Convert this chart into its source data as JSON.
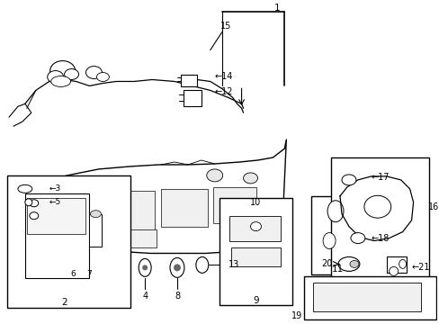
{
  "bg": "#ffffff",
  "lc": "#1a1a1a",
  "figsize": [
    4.89,
    3.6
  ],
  "dpi": 100
}
